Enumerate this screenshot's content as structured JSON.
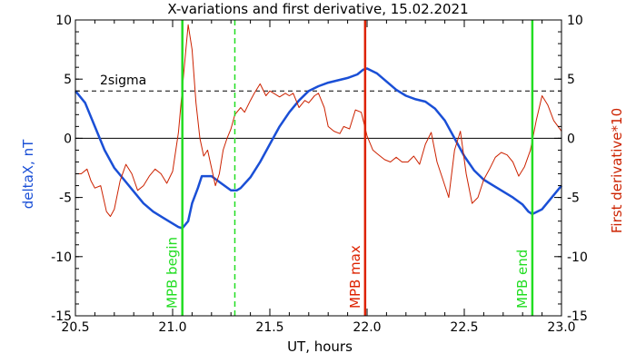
{
  "chart_data": {
    "type": "line",
    "title": "X-variations and first derivative, 15.02.2021",
    "xlabel": "UT, hours",
    "ylabel_left": "deltaX, nT",
    "ylabel_right": "First derivative*10",
    "xlim": [
      20.5,
      23.0
    ],
    "ylim": [
      -15,
      10
    ],
    "x_ticks": [
      20.5,
      21.0,
      21.5,
      22.0,
      22.5,
      23.0
    ],
    "x_tick_labels": [
      "20.5",
      "21.0",
      "21.5",
      "22.0",
      "22.5",
      "23.0"
    ],
    "y_ticks": [
      10,
      5,
      0,
      -5,
      -10,
      -15
    ],
    "y_tick_labels": [
      "10",
      "5",
      "0",
      "-5",
      "-10",
      "-15"
    ],
    "grid": false,
    "threshold": {
      "label": "2sigma",
      "value": 4.0
    },
    "markers": [
      {
        "x": 21.05,
        "label": "MPB begin",
        "color": "#22dd22",
        "style": "solid"
      },
      {
        "x": 21.32,
        "label": "",
        "color": "#22dd22",
        "style": "dashed"
      },
      {
        "x": 21.99,
        "label": "MPB max",
        "color": "#dd2200",
        "style": "solid"
      },
      {
        "x": 22.85,
        "label": "MPB end",
        "color": "#22dd22",
        "style": "solid"
      }
    ],
    "series": [
      {
        "name": "deltaX, nT",
        "color": "#1a4fd6",
        "x": [
          20.5,
          20.55,
          20.6,
          20.65,
          20.7,
          20.75,
          20.8,
          20.85,
          20.9,
          20.95,
          21.0,
          21.03,
          21.05,
          21.08,
          21.1,
          21.13,
          21.15,
          21.2,
          21.25,
          21.3,
          21.33,
          21.35,
          21.4,
          21.45,
          21.5,
          21.55,
          21.6,
          21.65,
          21.7,
          21.75,
          21.8,
          21.85,
          21.9,
          21.95,
          21.98,
          22.0,
          22.05,
          22.1,
          22.15,
          22.2,
          22.25,
          22.3,
          22.35,
          22.4,
          22.45,
          22.5,
          22.55,
          22.6,
          22.65,
          22.7,
          22.75,
          22.8,
          22.83,
          22.85,
          22.9,
          22.95,
          23.0
        ],
        "values": [
          4.0,
          3.0,
          1.0,
          -1.0,
          -2.5,
          -3.5,
          -4.5,
          -5.5,
          -6.2,
          -6.7,
          -7.2,
          -7.5,
          -7.6,
          -7.0,
          -5.5,
          -4.2,
          -3.2,
          -3.2,
          -3.8,
          -4.4,
          -4.4,
          -4.2,
          -3.3,
          -2.0,
          -0.5,
          1.0,
          2.2,
          3.2,
          4.0,
          4.4,
          4.7,
          4.9,
          5.1,
          5.4,
          5.8,
          5.9,
          5.5,
          4.8,
          4.1,
          3.6,
          3.3,
          3.1,
          2.5,
          1.5,
          0.0,
          -1.5,
          -2.7,
          -3.5,
          -4.0,
          -4.5,
          -5.0,
          -5.6,
          -6.2,
          -6.4,
          -6.0,
          -5.0,
          -4.0
        ]
      },
      {
        "name": "First derivative*10",
        "color": "#cc2200",
        "x": [
          20.5,
          20.53,
          20.56,
          20.58,
          20.6,
          20.63,
          20.66,
          20.68,
          20.7,
          20.73,
          20.76,
          20.79,
          20.82,
          20.85,
          20.88,
          20.91,
          20.94,
          20.97,
          21.0,
          21.03,
          21.06,
          21.08,
          21.1,
          21.12,
          21.14,
          21.16,
          21.18,
          21.2,
          21.22,
          21.24,
          21.26,
          21.28,
          21.3,
          21.32,
          21.35,
          21.37,
          21.4,
          21.42,
          21.45,
          21.48,
          21.5,
          21.52,
          21.55,
          21.58,
          21.6,
          21.62,
          21.65,
          21.68,
          21.7,
          21.73,
          21.75,
          21.78,
          21.8,
          21.83,
          21.86,
          21.88,
          21.91,
          21.94,
          21.97,
          22.0,
          22.03,
          22.06,
          22.09,
          22.12,
          22.15,
          22.18,
          22.21,
          22.24,
          22.27,
          22.3,
          22.33,
          22.36,
          22.39,
          22.42,
          22.45,
          22.48,
          22.51,
          22.54,
          22.57,
          22.6,
          22.63,
          22.66,
          22.69,
          22.72,
          22.75,
          22.78,
          22.81,
          22.84,
          22.87,
          22.9,
          22.93,
          22.96,
          23.0
        ],
        "values": [
          -3.0,
          -3.0,
          -2.6,
          -3.6,
          -4.2,
          -4.0,
          -6.2,
          -6.6,
          -6.0,
          -3.6,
          -2.2,
          -3.0,
          -4.4,
          -4.0,
          -3.2,
          -2.6,
          -3.0,
          -3.8,
          -2.8,
          0.5,
          6.0,
          9.6,
          7.5,
          3.0,
          0.0,
          -1.5,
          -1.0,
          -2.5,
          -4.0,
          -3.0,
          -1.0,
          0.0,
          0.8,
          2.0,
          2.6,
          2.2,
          3.2,
          3.8,
          4.6,
          3.6,
          4.0,
          3.8,
          3.5,
          3.8,
          3.6,
          3.8,
          2.6,
          3.2,
          3.0,
          3.6,
          3.8,
          2.6,
          1.0,
          0.6,
          0.4,
          1.0,
          0.8,
          2.4,
          2.2,
          0.2,
          -1.0,
          -1.4,
          -1.8,
          -2.0,
          -1.6,
          -2.0,
          -2.0,
          -1.5,
          -2.2,
          -0.5,
          0.5,
          -2.0,
          -3.5,
          -5.0,
          -1.0,
          0.6,
          -3.0,
          -5.5,
          -5.0,
          -3.5,
          -2.6,
          -1.6,
          -1.2,
          -1.4,
          -2.0,
          -3.2,
          -2.4,
          -1.0,
          1.5,
          3.6,
          2.8,
          1.5,
          0.6
        ]
      }
    ]
  }
}
